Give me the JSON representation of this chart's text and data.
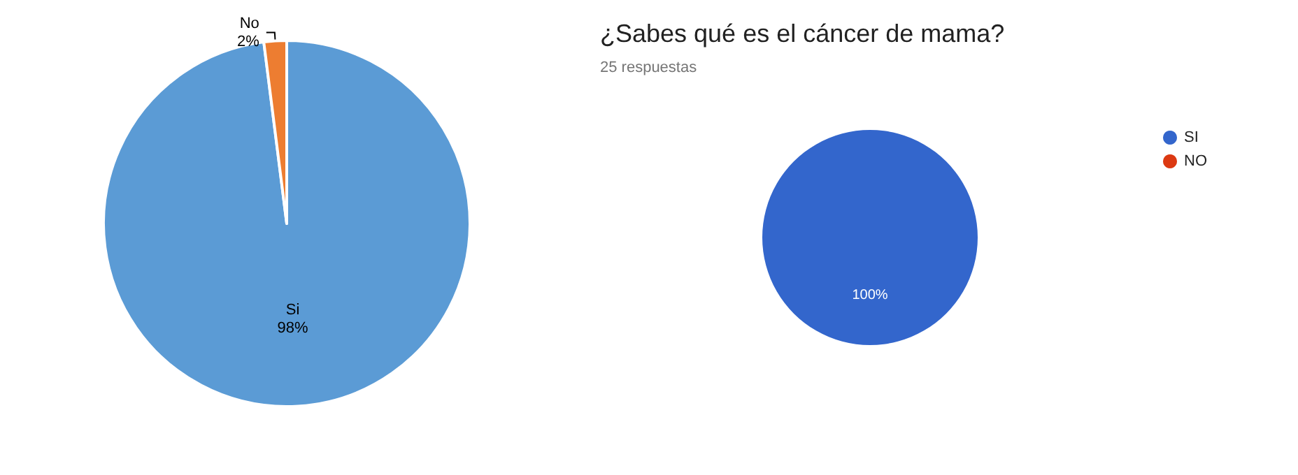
{
  "chart_data": [
    {
      "type": "pie",
      "categories": [
        "Si",
        "No"
      ],
      "values": [
        98,
        2
      ],
      "colors": [
        "#5b9bd5",
        "#ed7d31"
      ],
      "value_labels": [
        "98%",
        "2%"
      ],
      "legend": false
    },
    {
      "type": "pie",
      "title": "¿Sabes qué es el cáncer de mama?",
      "subtitle": "25 respuestas",
      "categories": [
        "SI",
        "NO"
      ],
      "values": [
        100,
        0
      ],
      "colors": [
        "#3366cc",
        "#dc3912"
      ],
      "value_labels": [
        "100%",
        null
      ],
      "legend": "top right"
    }
  ]
}
